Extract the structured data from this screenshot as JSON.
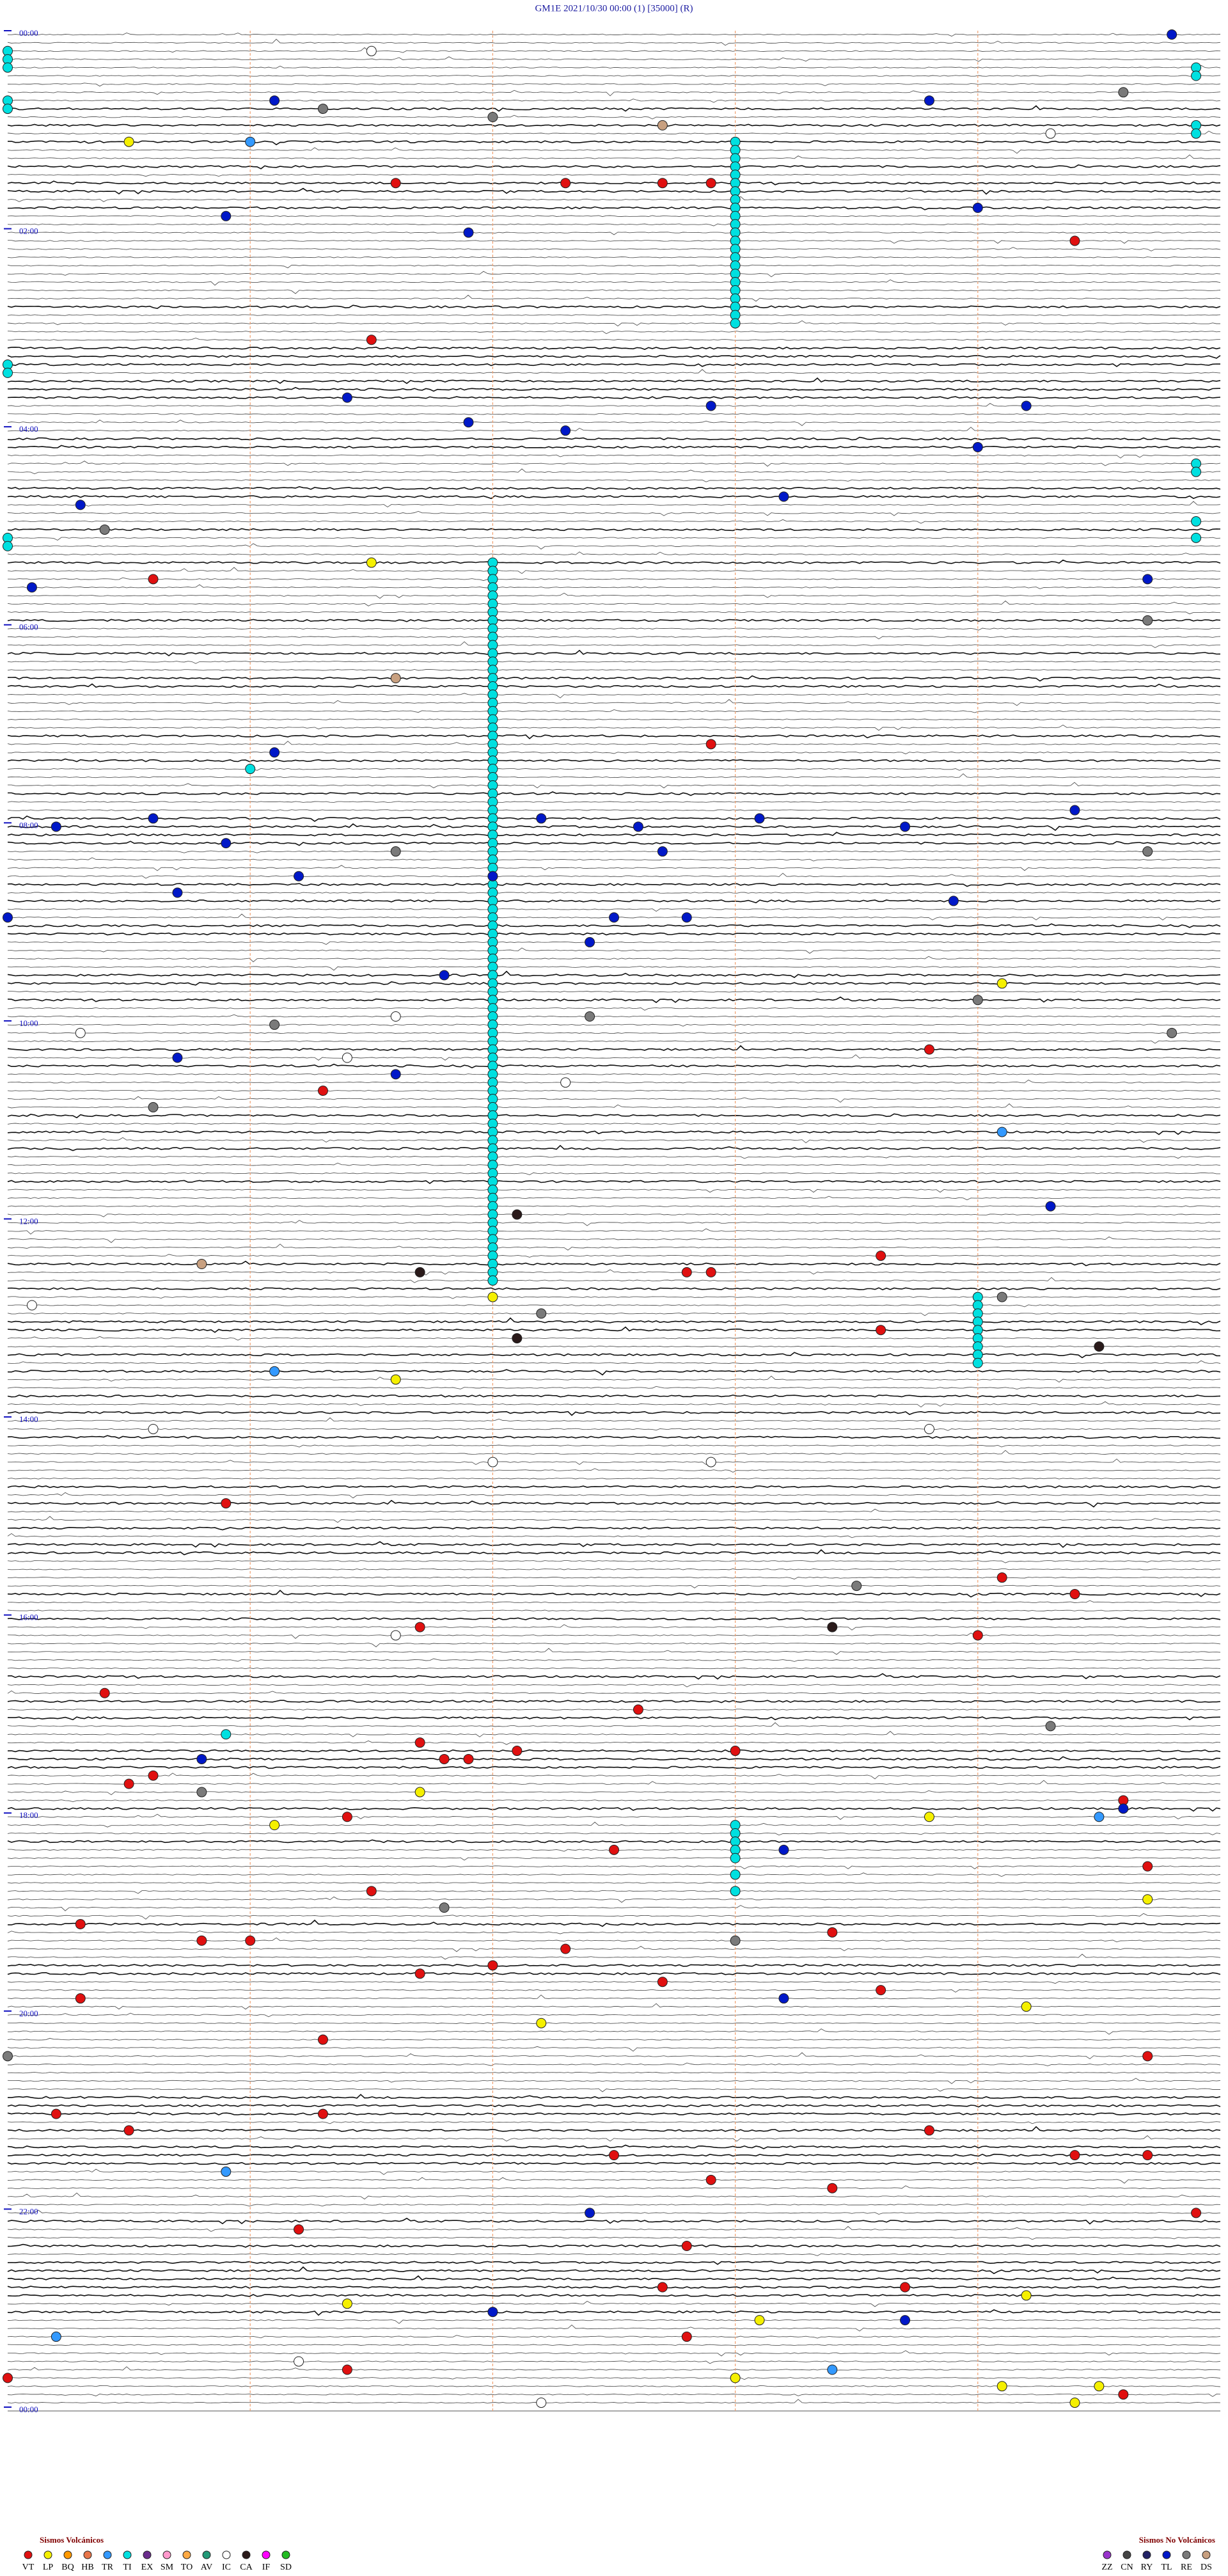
{
  "chart_data": {
    "type": "helicorder",
    "title": "GM1E    2021/10/30 00:00    (1)    [35000]    (R)",
    "xlim": [
      0,
      5
    ],
    "ylim": [
      0,
      1440
    ],
    "yticks": [
      {
        "value": 0,
        "label": "00:00"
      },
      {
        "value": 120,
        "label": "02:00"
      },
      {
        "value": 240,
        "label": "04:00"
      },
      {
        "value": 360,
        "label": "06:00"
      },
      {
        "value": 480,
        "label": "08:00"
      },
      {
        "value": 600,
        "label": "10:00"
      },
      {
        "value": 720,
        "label": "12:00"
      },
      {
        "value": 840,
        "label": "14:00"
      },
      {
        "value": 960,
        "label": "16:00"
      },
      {
        "value": 1080,
        "label": "18:00"
      },
      {
        "value": 1200,
        "label": "20:00"
      },
      {
        "value": 1320,
        "label": "22:00"
      },
      {
        "value": 1440,
        "label": "00:00"
      }
    ],
    "volcanic_title": "Sismos Volcánicos",
    "volcanic": [
      {
        "name": "VT",
        "color": "#e01010",
        "values": [
          91.6,
          92.3,
          92.7,
          92.9,
          129.4,
          186.5,
          330.6,
          432.9,
          618.8,
          641.3,
          743.6,
          752.8,
          752.9,
          788.6,
          890.9,
          939.1,
          949.4,
          974.0,
          966.7,
          1005.4,
          1017.6,
          1036.7,
          1042.1,
          1043.0,
          1046.8,
          1046.9,
          1055.6,
          1060.5,
          1074.6,
          1081.4,
          1102.5,
          1114.7,
          1126.5,
          1145.3,
          1153.4,
          1155.8,
          1156.0,
          1162.3,
          1172.0,
          1176.7,
          1182.7,
          1188.6,
          1190.3,
          1216.3,
          1229.7,
          1260.2,
          1261.3,
          1270.5,
          1273.8,
          1289.7,
          1289.4,
          1287.5,
          1302.9,
          1308.4,
          1324.9,
          1331.2,
          1342.8,
          1367.7,
          1368.7,
          1397.8,
          1416.4,
          1420.0,
          1434.6
        ]
      },
      {
        "name": "LP",
        "color": "#f5f000",
        "values": [
          65.5,
          321.5,
          579.1,
          767.0,
          816.6,
          1066.7,
          1086.1,
          1083.8,
          1134.7,
          1199.2,
          1207.2,
          1374.2,
          1376.4,
          1388.1,
          1423.0,
          1429.1,
          1429.5,
          1439.4
        ]
      },
      {
        "name": "BQ",
        "color": "#ff9900",
        "values": []
      },
      {
        "name": "HB",
        "color": "#e8764a",
        "values": []
      },
      {
        "name": "TR",
        "color": "#3399ff",
        "values": [
          66.0,
          669.1,
          811.1,
          1084.5,
          1295.9,
          1395.2,
          1418.4
        ]
      },
      {
        "name": "TI",
        "color": "#00e0e0",
        "values": [
          446.0,
          1030.9,
          68,
          73,
          78,
          83,
          88,
          93,
          98,
          103,
          108,
          113,
          118,
          123,
          128,
          133,
          138,
          143,
          148,
          153,
          158,
          163,
          168,
          173,
          178,
          322,
          327,
          332,
          337,
          342,
          347,
          352,
          357,
          362,
          367,
          372,
          377,
          382,
          387,
          392,
          397,
          402,
          407,
          412,
          417,
          422,
          427,
          432,
          437,
          442,
          447,
          452,
          457,
          462,
          467,
          472,
          477,
          482,
          487,
          492,
          497,
          502,
          507,
          512,
          517,
          522,
          527,
          532,
          537,
          542,
          547,
          552,
          557,
          562,
          567,
          572,
          577,
          582,
          587,
          592,
          597,
          602,
          607,
          612,
          617,
          622,
          627,
          632,
          637,
          642,
          647,
          652,
          657,
          662,
          667,
          672,
          677,
          682,
          687,
          692,
          697,
          702,
          707,
          712,
          717,
          722,
          727,
          732,
          737,
          742,
          747,
          752,
          757,
          24.9,
          29.9,
          59.9,
          64.9,
          264.9,
          269.9,
          299.9,
          309.9,
          10.0,
          15.0,
          20.0,
          40.0,
          45.0,
          200.0,
          205.0,
          305.0,
          310.0,
          769,
          774,
          779,
          784,
          789,
          794,
          799,
          804,
          809,
          1088,
          1093,
          1098,
          1103,
          1108,
          1118,
          1128
        ]
      },
      {
        "name": "EX",
        "color": "#6a2c8c",
        "values": []
      },
      {
        "name": "SM",
        "color": "#ff99cc",
        "values": []
      },
      {
        "name": "TO",
        "color": "#ffaa44",
        "values": []
      },
      {
        "name": "AV",
        "color": "#229977",
        "values": []
      },
      {
        "name": "IC",
        "color": "#ffffff",
        "values": [
          11.5,
          64.3,
          596.6,
          605.3,
          621.4,
          637.3,
          770.1,
          845.6,
          848.8,
          867.0,
          867.9,
          971.6,
          1411.2,
          1437.2
        ]
      },
      {
        "name": "CA",
        "color": "#2a1a1a",
        "values": [
          717.1,
          751.7,
          792.1,
          799.5,
          968.4
        ]
      },
      {
        "name": "IF",
        "color": "#ff00ff",
        "values": []
      },
      {
        "name": "SD",
        "color": "#22bb22",
        "values": []
      }
    ],
    "non_volcanic_title": "Sismos No Volcánicos",
    "non_volcanic": [
      {
        "name": "ZZ",
        "color": "#9933cc",
        "values": []
      },
      {
        "name": "CN",
        "color": "#444444",
        "values": []
      },
      {
        "name": "RY",
        "color": "#222266",
        "values": []
      },
      {
        "name": "TL",
        "color": "#0018c8",
        "values": [
          4.8,
          41.1,
          43.8,
          110.9,
          109.0,
          121.9,
          221.4,
          227.9,
          229.2,
          236.9,
          242.3,
          254.0,
          283.2,
          285.3,
          335.1,
          334.7,
          436.1,
          475.6,
          480.2,
          477.2,
          482.6,
          478.1,
          483.7,
          474.4,
          490.9,
          497.7,
          511.2,
          512.0,
          520.7,
          528.9,
          535.0,
          537.5,
          537.8,
          552.4,
          571.8,
          620.7,
          631.6,
          714.3,
          1045.8,
          1079.6,
          1103.2,
          1193.2,
          1322.4,
          1382.0,
          1388.7
        ]
      },
      {
        "name": "RE",
        "color": "#7a7a7a",
        "values": [
          46.3,
          52.0,
          39.6,
          300.4,
          359.7,
          496.6,
          499.7,
          589.0,
          597.4,
          601.1,
          609.8,
          650.6,
          769.1,
          777.2,
          943.5,
          1029.3,
          1065.8,
          1136.8,
          1158.0,
          1225.0
        ]
      },
      {
        "name": "DS",
        "color": "#c8a080",
        "values": [
          57.7,
          391.6,
          745.8
        ]
      }
    ]
  }
}
